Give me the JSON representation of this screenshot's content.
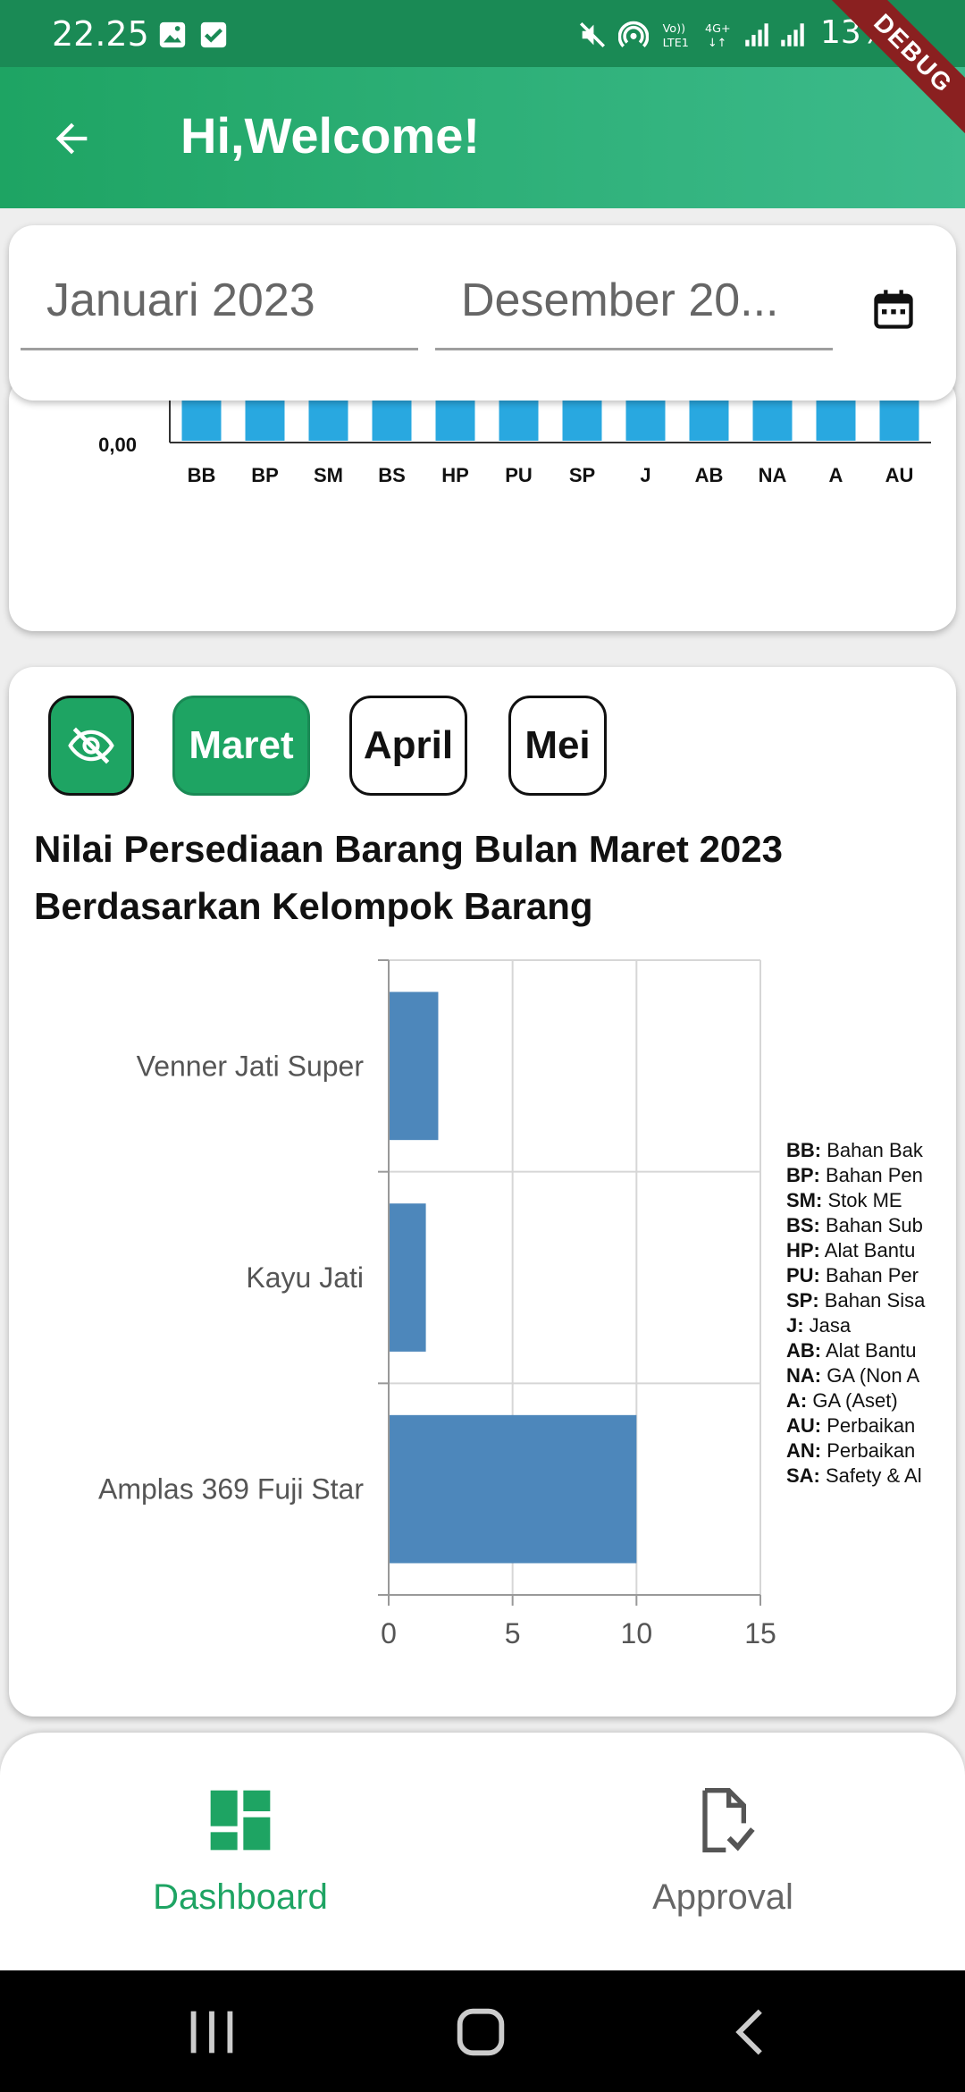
{
  "status_bar": {
    "time": "22.25",
    "battery": "13%",
    "debug": "DEBUG",
    "network": "4G+"
  },
  "app_bar": {
    "title": "Hi,Welcome!"
  },
  "date_range": {
    "start": "Januari 2023",
    "end": "Desember 20..."
  },
  "chart_data": [
    {
      "type": "bar",
      "title": "",
      "y_tick_visible": "0,00",
      "categories": [
        "BB",
        "BP",
        "SM",
        "BS",
        "HP",
        "PU",
        "SP",
        "J",
        "AB",
        "NA",
        "A",
        "AU"
      ],
      "values": [
        0,
        0,
        0,
        0,
        0,
        0,
        0,
        0,
        0,
        0,
        0,
        0
      ],
      "color": "#29a8e0",
      "note": ""
    },
    {
      "type": "bar",
      "orientation": "horizontal",
      "title": "Nilai Persediaan Barang Bulan Maret 2023 Berdasarkan Kelompok Barang",
      "categories": [
        "Venner Jati Super",
        "Kayu Jati",
        "Amplas 369 Fuji Star"
      ],
      "values": [
        2,
        1.5,
        10
      ],
      "xlim": [
        0,
        15
      ],
      "x_ticks": [
        "0",
        "5",
        "10",
        "15"
      ],
      "color": "#4d87bb",
      "grid": true
    }
  ],
  "month_tabs": {
    "items": [
      "Maret",
      "April",
      "Mei"
    ],
    "selected": "Maret"
  },
  "chart_title": "Nilai Persediaan Barang Bulan Maret 2023 Berdasarkan Kelompok Barang",
  "legend": [
    {
      "code": "BB:",
      "label": "Bahan Bak"
    },
    {
      "code": "BP:",
      "label": "Bahan Pen"
    },
    {
      "code": "SM:",
      "label": "Stok ME"
    },
    {
      "code": "BS:",
      "label": "Bahan Sub"
    },
    {
      "code": "HP:",
      "label": "Alat Bantu"
    },
    {
      "code": "PU:",
      "label": "Bahan Per"
    },
    {
      "code": "SP:",
      "label": "Bahan Sisa"
    },
    {
      "code": "J:",
      "label": "Jasa"
    },
    {
      "code": "AB:",
      "label": "Alat Bantu"
    },
    {
      "code": "NA:",
      "label": "GA (Non A"
    },
    {
      "code": "A:",
      "label": "GA (Aset)"
    },
    {
      "code": "AU:",
      "label": "Perbaikan"
    },
    {
      "code": "AN:",
      "label": "Perbaikan"
    },
    {
      "code": "SA:",
      "label": "Safety & Al"
    }
  ],
  "bottom_nav": {
    "dashboard": "Dashboard",
    "approval": "Approval",
    "active": "Dashboard"
  },
  "colors": {
    "primary": "#1ea463",
    "primary_dark": "#1a8a55",
    "bar_blue": "#29a8e0",
    "bar_steel": "#4d87bb"
  }
}
